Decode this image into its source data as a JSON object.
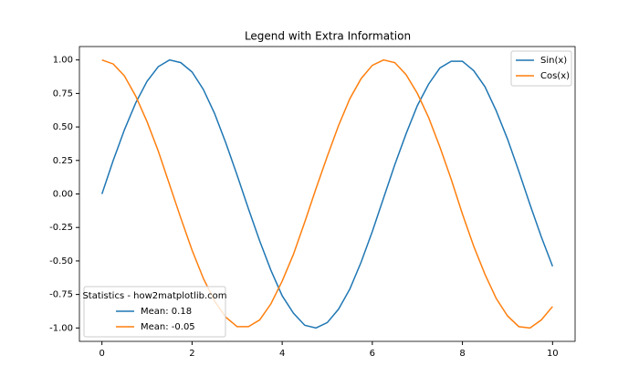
{
  "chart_data": {
    "type": "line",
    "title": "Legend with Extra Information",
    "x": [
      0,
      0.25,
      0.5,
      0.75,
      1,
      1.25,
      1.5,
      1.75,
      2,
      2.25,
      2.5,
      2.75,
      3,
      3.25,
      3.5,
      3.75,
      4,
      4.25,
      4.5,
      4.75,
      5,
      5.25,
      5.5,
      5.75,
      6,
      6.25,
      6.5,
      6.75,
      7,
      7.25,
      7.5,
      7.75,
      8,
      8.25,
      8.5,
      8.75,
      9,
      9.25,
      9.5,
      9.75,
      10
    ],
    "series": [
      {
        "name": "Sin(x)",
        "color": "#1f77b4",
        "values": [
          0,
          0.25,
          0.48,
          0.68,
          0.84,
          0.95,
          1.0,
          0.98,
          0.91,
          0.78,
          0.6,
          0.38,
          0.14,
          -0.11,
          -0.35,
          -0.57,
          -0.76,
          -0.89,
          -0.98,
          -1.0,
          -0.96,
          -0.86,
          -0.71,
          -0.51,
          -0.28,
          -0.03,
          0.22,
          0.45,
          0.66,
          0.82,
          0.94,
          0.99,
          0.99,
          0.92,
          0.8,
          0.62,
          0.41,
          0.17,
          -0.08,
          -0.32,
          -0.54
        ]
      },
      {
        "name": "Cos(x)",
        "color": "#ff7f0e",
        "values": [
          1,
          0.97,
          0.88,
          0.73,
          0.54,
          0.32,
          0.07,
          -0.18,
          -0.42,
          -0.63,
          -0.8,
          -0.92,
          -0.99,
          -0.99,
          -0.94,
          -0.82,
          -0.65,
          -0.45,
          -0.21,
          0.04,
          0.28,
          0.51,
          0.71,
          0.86,
          0.96,
          1.0,
          0.98,
          0.89,
          0.75,
          0.57,
          0.35,
          0.11,
          -0.15,
          -0.39,
          -0.6,
          -0.78,
          -0.91,
          -0.99,
          -1.0,
          -0.94,
          -0.84
        ]
      }
    ],
    "xlim": [
      -0.5,
      10.5
    ],
    "xticks": [
      0,
      2,
      4,
      6,
      8,
      10
    ],
    "ylim": [
      -1.1,
      1.1
    ],
    "yticks": [
      {
        "value": -1,
        "label": "-1.00"
      },
      {
        "value": -0.75,
        "label": "-0.75"
      },
      {
        "value": -0.5,
        "label": "-0.50"
      },
      {
        "value": -0.25,
        "label": "-0.25"
      },
      {
        "value": 0,
        "label": "0.00"
      },
      {
        "value": 0.25,
        "label": "0.25"
      },
      {
        "value": 0.5,
        "label": "0.50"
      },
      {
        "value": 0.75,
        "label": "0.75"
      },
      {
        "value": 1,
        "label": "1.00"
      }
    ],
    "legend": "upper right",
    "stats_legend": {
      "title": "Statistics - how2matplotlib.com",
      "entries": [
        "Mean: 0.18",
        "Mean: -0.05"
      ]
    }
  }
}
